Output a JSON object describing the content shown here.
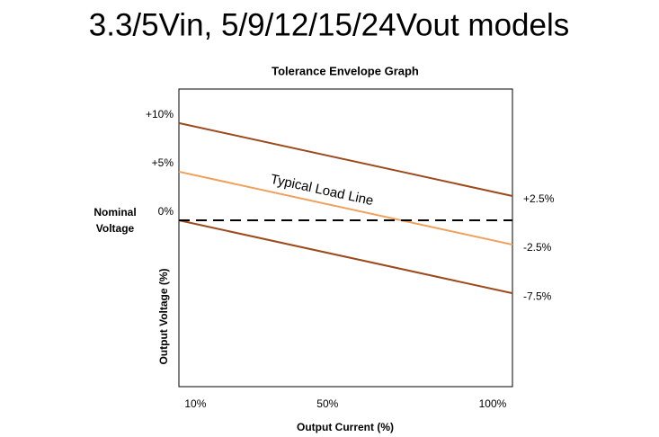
{
  "chart_data": {
    "type": "line",
    "title": "3.3/5Vin, 5/9/12/15/24Vout models",
    "subtitle": "Tolerance Envelope Graph",
    "x_label": "Output Current (%)",
    "y_label": "Output Voltage (%)",
    "nominal_label": [
      "Nominal",
      "Voltage"
    ],
    "annotation": "Typical Load Line",
    "x": [
      5,
      106
    ],
    "xlim": [
      5,
      106
    ],
    "xticks": [
      {
        "value": 10,
        "label": "10%"
      },
      {
        "value": 50,
        "label": "50%"
      },
      {
        "value": 100,
        "label": "100%"
      }
    ],
    "ylim": [
      -17.1,
      13.5
    ],
    "yticks": [
      {
        "value": 10,
        "label": "+10%"
      },
      {
        "value": 5,
        "label": "+5%"
      },
      {
        "value": 0,
        "label": "0%"
      }
    ],
    "y2lim": [
      -17.1,
      13.5
    ],
    "y2ticks": [
      {
        "value": 2.5,
        "label": "+2.5%"
      },
      {
        "value": -2.5,
        "label": "-2.5%"
      },
      {
        "value": -7.5,
        "label": "-7.5%"
      }
    ],
    "series": [
      {
        "color": "#9c4a1c",
        "dash": false,
        "values": [
          10,
          2.5
        ]
      },
      {
        "color": "#f0a05a",
        "dash": false,
        "values": [
          5,
          -2.5
        ]
      },
      {
        "color": "#9c4a1c",
        "dash": false,
        "values": [
          0,
          -7.5
        ]
      },
      {
        "color": "#000000",
        "dash": true,
        "values": [
          0,
          0
        ]
      }
    ]
  }
}
